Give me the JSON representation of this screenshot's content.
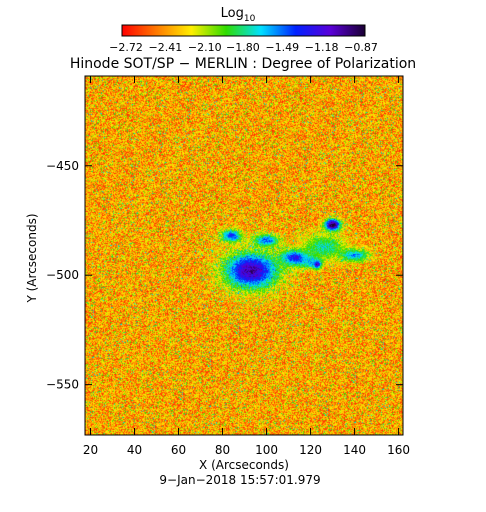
{
  "chart_data": {
    "type": "heatmap",
    "title": "Hinode SOT/SP − MERLIN : Degree of Polarization",
    "xlabel": "X (Arcseconds)",
    "ylabel": "Y (Arcseconds)",
    "timestamp": "9−Jan−2018 15:57:01.979",
    "xlim": [
      17.5,
      162
    ],
    "ylim": [
      -573,
      -409
    ],
    "x_ticks": [
      20,
      40,
      60,
      80,
      100,
      120,
      140,
      160
    ],
    "x_tick_labels": [
      "20",
      "40",
      "60",
      "80",
      "100",
      "120",
      "140",
      "160"
    ],
    "y_ticks": [
      -450,
      -500,
      -550
    ],
    "y_tick_labels": [
      "−450",
      "−500",
      "−550"
    ],
    "colorbar": {
      "title_main": "Log",
      "title_sub": "10",
      "ticks": [
        -2.72,
        -2.41,
        -2.1,
        -1.8,
        -1.49,
        -1.18,
        -0.87
      ],
      "tick_labels": [
        "−2.72",
        "−2.41",
        "−2.10",
        "−1.80",
        "−1.49",
        "−1.18",
        "−0.87"
      ],
      "range": [
        -2.72,
        -0.87
      ],
      "colors": [
        "#ff0000",
        "#ff7a00",
        "#ffee00",
        "#2fdc00",
        "#00e0ff",
        "#0022ff",
        "#5a00d8",
        "#1a0033"
      ]
    },
    "background_value": -2.4,
    "features": [
      {
        "x": 93,
        "y": -498,
        "rx": 13,
        "ry": 9,
        "peak": -1.05
      },
      {
        "x": 84,
        "y": -482,
        "rx": 5,
        "ry": 3,
        "peak": -1.35
      },
      {
        "x": 100,
        "y": -484,
        "rx": 6,
        "ry": 3,
        "peak": -1.45
      },
      {
        "x": 113,
        "y": -492,
        "rx": 7,
        "ry": 4,
        "peak": -1.3
      },
      {
        "x": 123,
        "y": -495,
        "rx": 2,
        "ry": 2,
        "peak": -1.05
      },
      {
        "x": 130,
        "y": -477,
        "rx": 4,
        "ry": 3,
        "peak": -0.88
      },
      {
        "x": 126,
        "y": -487,
        "rx": 10,
        "ry": 6,
        "peak": -1.75
      },
      {
        "x": 140,
        "y": -491,
        "rx": 7,
        "ry": 3,
        "peak": -1.55
      },
      {
        "x": 120,
        "y": -494,
        "rx": 5,
        "ry": 3,
        "peak": -1.6
      }
    ]
  }
}
